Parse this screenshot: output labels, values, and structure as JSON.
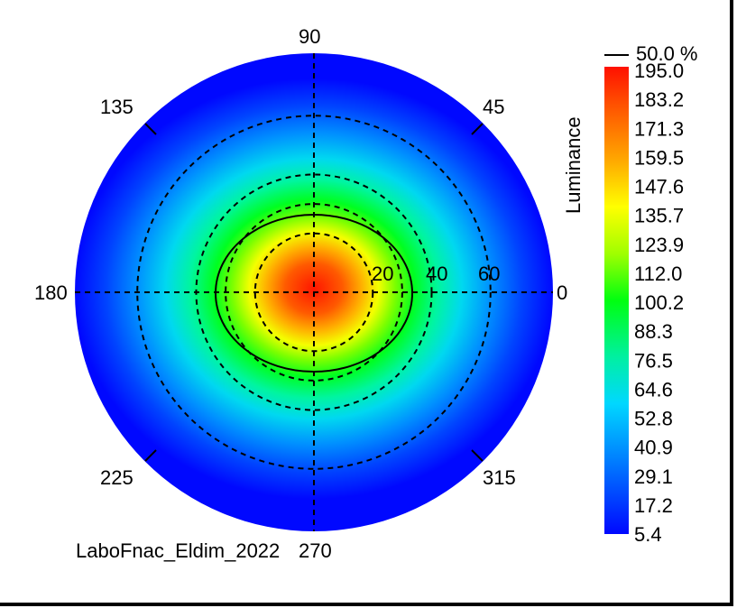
{
  "chart_data": {
    "type": "heatmap",
    "projection": "polar",
    "footer_text": "LaboFnac_Eldim_2022",
    "angle_labels": [
      "0",
      "45",
      "90",
      "135",
      "180",
      "225",
      "270",
      "315"
    ],
    "radial_labels": [
      "20",
      "40",
      "60"
    ],
    "radial_rings": [
      20,
      30,
      40,
      60
    ],
    "radial_max": 80,
    "contour": {
      "label": "50.0 %",
      "value": 97.5
    },
    "colorbar": {
      "label": "Luminance",
      "min": 5.4,
      "max": 195.0,
      "tick_labels": [
        "195.0",
        "183.2",
        "171.3",
        "159.5",
        "147.6",
        "135.7",
        "123.9",
        "112.0",
        "100.2",
        "88.3",
        "76.5",
        "64.6",
        "52.8",
        "40.9",
        "29.1",
        "17.2",
        "5.4"
      ]
    },
    "grid": true
  }
}
